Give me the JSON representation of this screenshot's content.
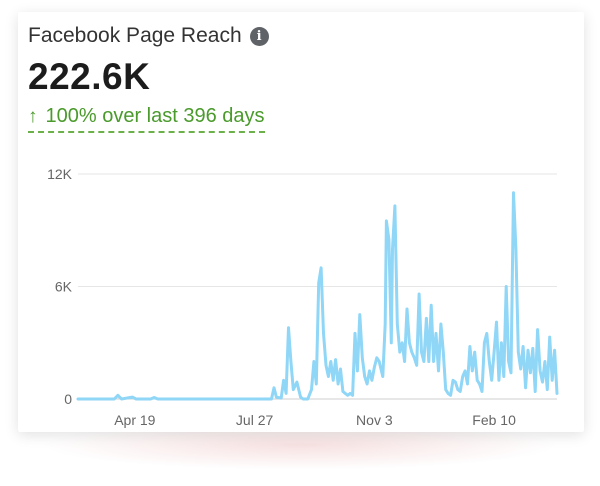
{
  "card": {
    "title": "Facebook Page Reach",
    "info_icon": "info-icon",
    "value": "222.6K",
    "change_arrow_icon": "arrow-up-icon",
    "change_text": "100% over last 396 days",
    "colors": {
      "positive": "#4a9a2c",
      "line": "#8fd6f7",
      "grid": "#e6e6e6"
    }
  },
  "chart_data": {
    "type": "line",
    "title": "",
    "xlabel": "",
    "ylabel": "",
    "ylim": [
      0,
      12000
    ],
    "y_ticks": [
      {
        "value": 0,
        "label": "0"
      },
      {
        "value": 6000,
        "label": "6K"
      },
      {
        "value": 12000,
        "label": "12K"
      }
    ],
    "x_range": [
      0,
      396
    ],
    "x_ticks": [
      {
        "day": 47,
        "label": "Apr 19"
      },
      {
        "day": 146,
        "label": "Jul 27"
      },
      {
        "day": 245,
        "label": "Nov 3"
      },
      {
        "day": 344,
        "label": "Feb 10"
      }
    ],
    "grid": true,
    "legend": "none",
    "series": [
      {
        "values": [
          [
            0,
            0
          ],
          [
            30,
            0
          ],
          [
            33,
            200
          ],
          [
            36,
            0
          ],
          [
            45,
            100
          ],
          [
            48,
            0
          ],
          [
            60,
            0
          ],
          [
            63,
            80
          ],
          [
            66,
            0
          ],
          [
            120,
            0
          ],
          [
            150,
            0
          ],
          [
            160,
            0
          ],
          [
            162,
            600
          ],
          [
            164,
            100
          ],
          [
            168,
            50
          ],
          [
            170,
            1000
          ],
          [
            172,
            300
          ],
          [
            174,
            3800
          ],
          [
            176,
            2000
          ],
          [
            178,
            500
          ],
          [
            181,
            900
          ],
          [
            184,
            100
          ],
          [
            186,
            0
          ],
          [
            190,
            0
          ],
          [
            193,
            500
          ],
          [
            195,
            2000
          ],
          [
            197,
            800
          ],
          [
            199,
            6200
          ],
          [
            201,
            7000
          ],
          [
            203,
            3500
          ],
          [
            205,
            1800
          ],
          [
            207,
            1200
          ],
          [
            209,
            2000
          ],
          [
            211,
            1000
          ],
          [
            213,
            2100
          ],
          [
            215,
            800
          ],
          [
            217,
            1600
          ],
          [
            219,
            400
          ],
          [
            221,
            300
          ],
          [
            223,
            200
          ],
          [
            225,
            300
          ],
          [
            227,
            200
          ],
          [
            229,
            3500
          ],
          [
            231,
            1500
          ],
          [
            233,
            4500
          ],
          [
            235,
            2200
          ],
          [
            237,
            1200
          ],
          [
            239,
            800
          ],
          [
            241,
            1500
          ],
          [
            243,
            1000
          ],
          [
            245,
            1700
          ],
          [
            247,
            2200
          ],
          [
            249,
            2000
          ],
          [
            252,
            1200
          ],
          [
            254,
            4000
          ],
          [
            255,
            9500
          ],
          [
            257,
            8500
          ],
          [
            259,
            3000
          ],
          [
            260,
            8000
          ],
          [
            262,
            10300
          ],
          [
            264,
            4000
          ],
          [
            266,
            2500
          ],
          [
            268,
            3000
          ],
          [
            270,
            2000
          ],
          [
            272,
            4800
          ],
          [
            274,
            3000
          ],
          [
            276,
            2500
          ],
          [
            278,
            2200
          ],
          [
            280,
            1800
          ],
          [
            282,
            5600
          ],
          [
            284,
            2500
          ],
          [
            286,
            2000
          ],
          [
            288,
            4300
          ],
          [
            290,
            2000
          ],
          [
            292,
            5000
          ],
          [
            294,
            2000
          ],
          [
            296,
            3500
          ],
          [
            298,
            1500
          ],
          [
            300,
            4000
          ],
          [
            302,
            2500
          ],
          [
            304,
            500
          ],
          [
            306,
            300
          ],
          [
            308,
            200
          ],
          [
            310,
            1000
          ],
          [
            312,
            900
          ],
          [
            314,
            500
          ],
          [
            316,
            400
          ],
          [
            318,
            1200
          ],
          [
            320,
            1500
          ],
          [
            322,
            800
          ],
          [
            324,
            2800
          ],
          [
            326,
            1500
          ],
          [
            328,
            2500
          ],
          [
            330,
            1000
          ],
          [
            332,
            800
          ],
          [
            334,
            400
          ],
          [
            336,
            3000
          ],
          [
            338,
            3500
          ],
          [
            340,
            2000
          ],
          [
            342,
            1000
          ],
          [
            344,
            2500
          ],
          [
            346,
            4100
          ],
          [
            348,
            1000
          ],
          [
            350,
            3000
          ],
          [
            352,
            1200
          ],
          [
            354,
            6000
          ],
          [
            356,
            2000
          ],
          [
            358,
            1400
          ],
          [
            360,
            11000
          ],
          [
            362,
            8000
          ],
          [
            364,
            2500
          ],
          [
            366,
            1600
          ],
          [
            368,
            2800
          ],
          [
            370,
            600
          ],
          [
            372,
            2600
          ],
          [
            374,
            1400
          ],
          [
            376,
            2700
          ],
          [
            378,
            400
          ],
          [
            380,
            3700
          ],
          [
            382,
            1500
          ],
          [
            384,
            900
          ],
          [
            386,
            2000
          ],
          [
            388,
            500
          ],
          [
            390,
            3300
          ],
          [
            392,
            1000
          ],
          [
            394,
            2600
          ],
          [
            396,
            300
          ]
        ]
      }
    ]
  }
}
